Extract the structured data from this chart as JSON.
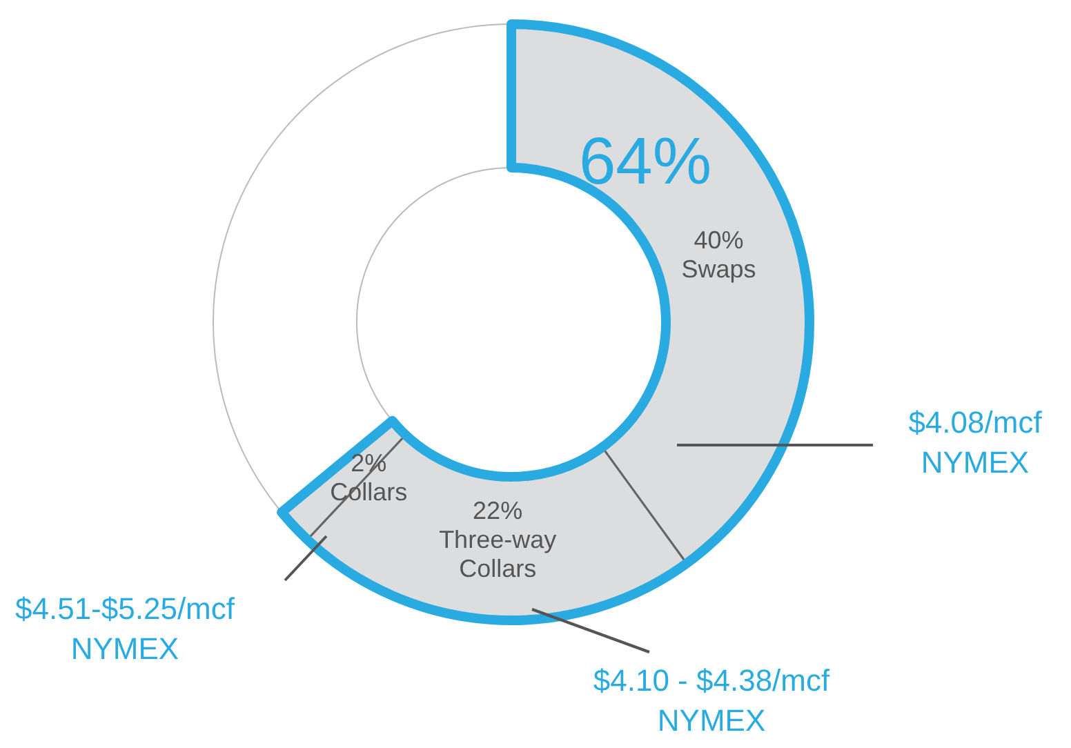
{
  "chart_data": {
    "type": "donut",
    "categories": [
      "Swaps",
      "Three-way\nCollars",
      "Collars",
      null
    ],
    "values": [
      40,
      22,
      2,
      36
    ],
    "colors": [
      "#dcdddf",
      "#dcdddf",
      "#dcdddf",
      "#ffffff"
    ],
    "value_labels": [
      "40%",
      "22%",
      "2%",
      null
    ],
    "annotations": [
      "64%",
      "$4.08/mcf\nNYMEX",
      "$4.10 - $4.38/mcf\nNYMEX",
      "$4.51-$5.25/mcf\nNYMEX"
    ]
  }
}
